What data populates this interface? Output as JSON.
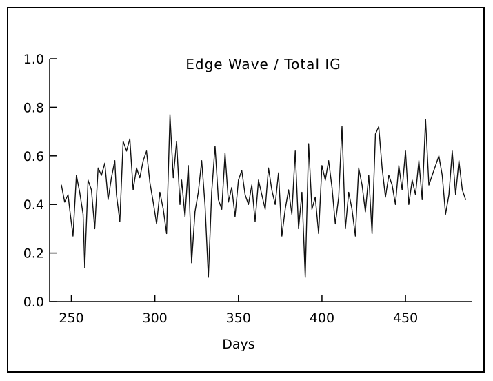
{
  "chart_data": {
    "type": "line",
    "title": "Edge Wave / Total IG",
    "xlabel": "Days",
    "ylabel": "",
    "xlim": [
      237,
      490
    ],
    "ylim": [
      0.0,
      1.0
    ],
    "x_ticks": [
      250,
      300,
      350,
      400,
      450
    ],
    "x_tick_labels": [
      "250",
      "300",
      "350",
      "400",
      "450"
    ],
    "y_ticks": [
      0.0,
      0.2,
      0.4,
      0.6,
      0.8,
      1.0
    ],
    "y_tick_labels": [
      "0.0",
      "0.2",
      "0.4",
      "0.6",
      "0.8",
      "1.0"
    ],
    "grid": false,
    "line_color": "#111111",
    "series": [
      {
        "name": "",
        "x": [
          244,
          246,
          248,
          249,
          251,
          253,
          255,
          257,
          258,
          260,
          262,
          264,
          266,
          268,
          270,
          272,
          274,
          276,
          277,
          279,
          281,
          283,
          285,
          287,
          289,
          291,
          293,
          295,
          297,
          299,
          301,
          303,
          305,
          307,
          309,
          311,
          313,
          315,
          316,
          318,
          320,
          322,
          324,
          326,
          328,
          330,
          332,
          334,
          336,
          338,
          340,
          342,
          344,
          346,
          348,
          350,
          352,
          354,
          356,
          358,
          360,
          362,
          364,
          366,
          368,
          370,
          372,
          374,
          376,
          378,
          380,
          382,
          384,
          386,
          388,
          390,
          392,
          394,
          396,
          398,
          400,
          402,
          404,
          406,
          408,
          410,
          412,
          414,
          416,
          418,
          420,
          422,
          424,
          426,
          428,
          430,
          432,
          434,
          436,
          438,
          440,
          442,
          444,
          446,
          448,
          450,
          452,
          454,
          456,
          458,
          460,
          462,
          464,
          466,
          468,
          470,
          472,
          474,
          476,
          478,
          480,
          482,
          484,
          486
        ],
        "values": [
          0.48,
          0.41,
          0.44,
          0.38,
          0.27,
          0.52,
          0.45,
          0.36,
          0.14,
          0.5,
          0.46,
          0.3,
          0.55,
          0.52,
          0.57,
          0.42,
          0.51,
          0.58,
          0.44,
          0.33,
          0.66,
          0.62,
          0.67,
          0.46,
          0.55,
          0.51,
          0.58,
          0.62,
          0.49,
          0.41,
          0.32,
          0.45,
          0.38,
          0.28,
          0.77,
          0.51,
          0.66,
          0.4,
          0.5,
          0.35,
          0.56,
          0.16,
          0.37,
          0.45,
          0.58,
          0.4,
          0.1,
          0.45,
          0.64,
          0.42,
          0.38,
          0.61,
          0.41,
          0.47,
          0.35,
          0.5,
          0.54,
          0.44,
          0.4,
          0.48,
          0.33,
          0.5,
          0.44,
          0.38,
          0.55,
          0.46,
          0.4,
          0.53,
          0.27,
          0.38,
          0.46,
          0.36,
          0.62,
          0.3,
          0.45,
          0.1,
          0.65,
          0.38,
          0.43,
          0.28,
          0.56,
          0.5,
          0.58,
          0.47,
          0.32,
          0.43,
          0.72,
          0.3,
          0.45,
          0.38,
          0.27,
          0.55,
          0.48,
          0.37,
          0.52,
          0.28,
          0.69,
          0.72,
          0.55,
          0.43,
          0.52,
          0.48,
          0.4,
          0.56,
          0.46,
          0.62,
          0.4,
          0.5,
          0.44,
          0.58,
          0.42,
          0.75,
          0.48,
          0.52,
          0.56,
          0.6,
          0.52,
          0.36,
          0.44,
          0.62,
          0.44,
          0.58,
          0.46,
          0.42
        ]
      }
    ]
  }
}
